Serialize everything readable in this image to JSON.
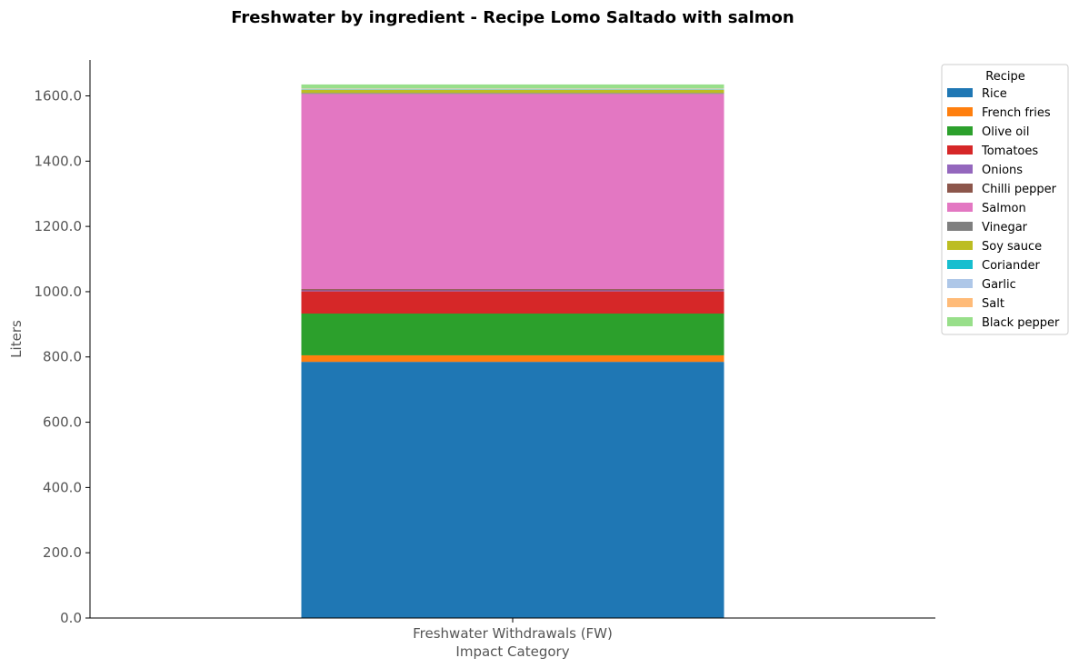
{
  "chart_data": {
    "type": "bar",
    "stacked": true,
    "title": "Freshwater by ingredient - Recipe Lomo Saltado with salmon",
    "xlabel": "Impact Category",
    "ylabel": "Liters",
    "categories": [
      "Freshwater Withdrawals (FW)"
    ],
    "ylim": [
      0,
      1710
    ],
    "yticks": [
      0,
      200,
      400,
      600,
      800,
      1000,
      1200,
      1400,
      1600
    ],
    "ytick_labels": [
      "0.0",
      "200.0",
      "400.0",
      "600.0",
      "800.0",
      "1000.0",
      "1200.0",
      "1400.0",
      "1600.0"
    ],
    "grid": false,
    "legend": {
      "title": "Recipe",
      "placement": "outside-top-right"
    },
    "series": [
      {
        "name": "Rice",
        "values": [
          785
        ],
        "color": "#1f77b4"
      },
      {
        "name": "French fries",
        "values": [
          20
        ],
        "color": "#ff7f0e"
      },
      {
        "name": "Olive oil",
        "values": [
          128
        ],
        "color": "#2ca02c"
      },
      {
        "name": "Tomatoes",
        "values": [
          68
        ],
        "color": "#d62728"
      },
      {
        "name": "Onions",
        "values": [
          3
        ],
        "color": "#9467bd"
      },
      {
        "name": "Chilli pepper",
        "values": [
          4
        ],
        "color": "#8c564b"
      },
      {
        "name": "Salmon",
        "values": [
          598
        ],
        "color": "#e377c2"
      },
      {
        "name": "Vinegar",
        "values": [
          3
        ],
        "color": "#7f7f7f"
      },
      {
        "name": "Soy sauce",
        "values": [
          10
        ],
        "color": "#bcbd22"
      },
      {
        "name": "Coriander",
        "values": [
          1
        ],
        "color": "#17becf"
      },
      {
        "name": "Garlic",
        "values": [
          2
        ],
        "color": "#aec7e8"
      },
      {
        "name": "Salt",
        "values": [
          1
        ],
        "color": "#ffbb78"
      },
      {
        "name": "Black pepper",
        "values": [
          12
        ],
        "color": "#98df8a"
      }
    ]
  }
}
